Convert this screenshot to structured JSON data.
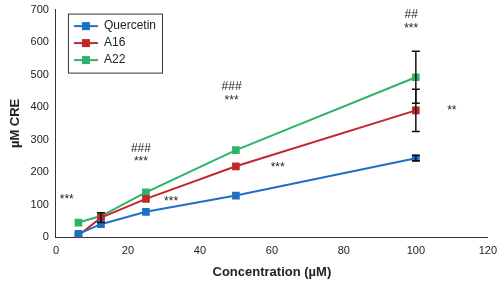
{
  "chart_data": {
    "type": "line",
    "x_label": "Concentration (µM)",
    "y_label": "µM CRE",
    "x": [
      6.25,
      12.5,
      25,
      50,
      100
    ],
    "series": [
      {
        "name": "Quercetin",
        "color": "#1f6fc5",
        "marker": "square",
        "values": [
          10,
          40,
          78,
          128,
          243
        ],
        "errors": [
          0,
          0,
          0,
          0,
          8
        ]
      },
      {
        "name": "A16",
        "color": "#c0282d",
        "marker": "square",
        "values": [
          5,
          60,
          118,
          218,
          390
        ],
        "errors": [
          0,
          15,
          0,
          0,
          65
        ]
      },
      {
        "name": "A22",
        "color": "#2db36a",
        "marker": "square",
        "values": [
          45,
          65,
          138,
          268,
          492
        ],
        "errors": [
          0,
          0,
          0,
          0,
          80
        ]
      }
    ],
    "xlim": [
      0,
      120
    ],
    "xticks": [
      0,
      20,
      40,
      60,
      80,
      100,
      120
    ],
    "ylim": [
      0,
      700
    ],
    "yticks": [
      0,
      100,
      200,
      300,
      400,
      500,
      600,
      700
    ],
    "grid": false,
    "legend": "upper left",
    "annotations": [
      {
        "text": "***",
        "x": 3,
        "y": 115
      },
      {
        "text": "###",
        "x": 23.6,
        "y": 272
      },
      {
        "text": "***",
        "x": 23.6,
        "y": 231
      },
      {
        "text": "***",
        "x": 32,
        "y": 108
      },
      {
        "text": "###",
        "x": 48.8,
        "y": 463
      },
      {
        "text": "***",
        "x": 48.8,
        "y": 420
      },
      {
        "text": "***",
        "x": 61.6,
        "y": 215
      },
      {
        "text": "##",
        "x": 98.7,
        "y": 684
      },
      {
        "text": "***",
        "x": 98.7,
        "y": 640
      },
      {
        "text": "**",
        "x": 110,
        "y": 388
      }
    ]
  }
}
